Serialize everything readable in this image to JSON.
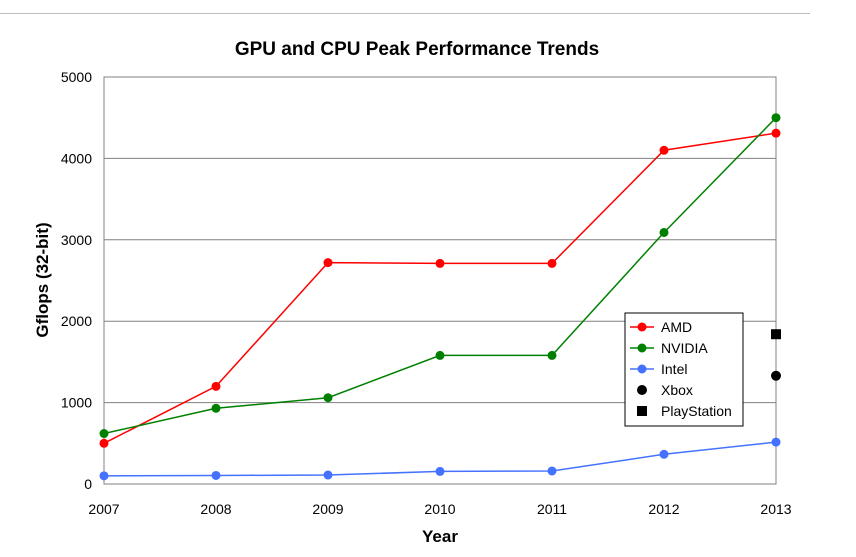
{
  "chart_data": {
    "type": "line",
    "title": "GPU and CPU Peak Performance Trends",
    "xlabel": "Year",
    "ylabel": "Gflops (32-bit)",
    "x": [
      "2007",
      "2008",
      "2009",
      "2010",
      "2011",
      "2012",
      "2013"
    ],
    "ylim": [
      0,
      5000
    ],
    "yticks": [
      "0",
      "1000",
      "2000",
      "3000",
      "4000",
      "5000"
    ],
    "grid": true,
    "legend_position": "right",
    "series": [
      {
        "name": "AMD",
        "color": "#ff0000",
        "marker": "circle",
        "values": [
          500,
          1200,
          2720,
          2710,
          2710,
          4100,
          4310
        ]
      },
      {
        "name": "NVIDIA",
        "color": "#008000",
        "marker": "circle",
        "values": [
          620,
          930,
          1060,
          1580,
          1580,
          3090,
          4500
        ]
      },
      {
        "name": "Intel",
        "color": "#4472ff",
        "marker": "circle",
        "values": [
          100,
          105,
          110,
          155,
          160,
          365,
          515
        ]
      }
    ],
    "points": [
      {
        "name": "Xbox",
        "color": "#000000",
        "marker": "circle",
        "x": "2013",
        "y": 1330
      },
      {
        "name": "PlayStation",
        "color": "#000000",
        "marker": "square",
        "x": "2013",
        "y": 1840
      }
    ]
  }
}
